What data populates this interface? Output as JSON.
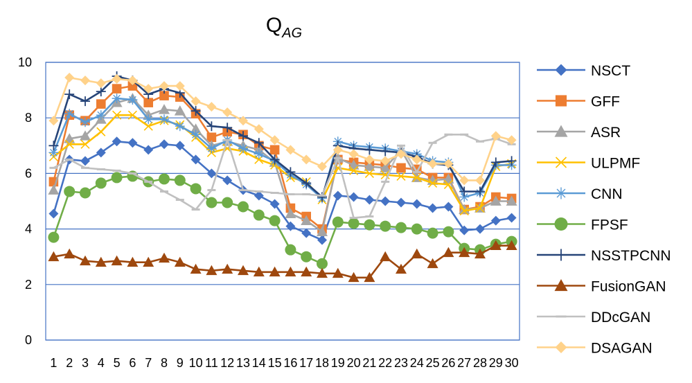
{
  "chart_data": {
    "type": "line",
    "title": "Q",
    "title_subscript": "AG",
    "xlabel": "",
    "ylabel": "",
    "ylim": [
      0,
      10
    ],
    "yticks": [
      0,
      2,
      4,
      6,
      8,
      10
    ],
    "grid": "horizontal",
    "legend_position": "right",
    "categories": [
      "1",
      "2",
      "3",
      "4",
      "5",
      "6",
      "7",
      "8",
      "9",
      "10",
      "11",
      "12",
      "13",
      "14",
      "15",
      "16",
      "17",
      "18",
      "19",
      "20",
      "21",
      "22",
      "23",
      "24",
      "25",
      "26",
      "27",
      "28",
      "29",
      "30"
    ],
    "series": [
      {
        "name": "NSCT",
        "color": "#4472C4",
        "marker": "diamond",
        "values": [
          4.55,
          6.5,
          6.45,
          6.75,
          7.15,
          7.1,
          6.85,
          7.05,
          7.0,
          6.5,
          6.0,
          5.75,
          5.4,
          5.2,
          4.9,
          4.1,
          3.85,
          3.6,
          5.2,
          5.15,
          5.05,
          5.0,
          4.95,
          4.9,
          4.75,
          4.8,
          3.95,
          4.0,
          4.3,
          4.4
        ]
      },
      {
        "name": "GFF",
        "color": "#ED7D31",
        "marker": "square",
        "values": [
          5.7,
          8.1,
          7.9,
          8.5,
          9.05,
          9.15,
          8.55,
          8.8,
          8.75,
          8.15,
          7.3,
          7.5,
          7.4,
          7.0,
          6.85,
          4.75,
          4.45,
          4.0,
          6.5,
          6.4,
          6.35,
          6.3,
          6.2,
          6.15,
          5.85,
          5.85,
          4.7,
          4.8,
          5.15,
          5.1
        ]
      },
      {
        "name": "ASR",
        "color": "#A5A5A5",
        "marker": "triangle",
        "values": [
          5.4,
          7.25,
          7.35,
          7.95,
          8.55,
          8.7,
          8.1,
          8.3,
          8.25,
          7.6,
          7.0,
          7.15,
          7.0,
          6.85,
          6.4,
          4.55,
          4.3,
          3.9,
          6.55,
          6.3,
          6.25,
          6.2,
          6.85,
          5.85,
          5.75,
          5.8,
          4.7,
          4.75,
          5.0,
          5.0
        ]
      },
      {
        "name": "ULPMF",
        "color": "#FFC000",
        "marker": "x",
        "values": [
          6.6,
          7.05,
          7.05,
          7.5,
          8.1,
          8.1,
          7.7,
          7.9,
          7.75,
          7.3,
          6.75,
          6.9,
          6.8,
          6.5,
          6.3,
          5.85,
          5.7,
          5.05,
          6.2,
          6.1,
          6.0,
          5.95,
          5.9,
          5.85,
          5.65,
          5.6,
          4.65,
          4.75,
          6.25,
          6.35
        ]
      },
      {
        "name": "CNN",
        "color": "#5B9BD5",
        "marker": "star",
        "values": [
          6.75,
          8.15,
          7.85,
          8.1,
          8.7,
          8.65,
          7.95,
          7.95,
          7.7,
          7.4,
          6.9,
          7.2,
          6.9,
          6.7,
          6.45,
          5.95,
          5.6,
          5.1,
          7.15,
          7.0,
          6.95,
          6.9,
          6.8,
          6.7,
          6.45,
          6.4,
          5.15,
          5.3,
          6.3,
          6.3
        ]
      },
      {
        "name": "FPSF",
        "color": "#70AD47",
        "marker": "circle",
        "values": [
          3.7,
          5.35,
          5.3,
          5.65,
          5.85,
          5.9,
          5.7,
          5.8,
          5.75,
          5.45,
          4.95,
          4.95,
          4.8,
          4.5,
          4.3,
          3.25,
          3.0,
          2.75,
          4.25,
          4.2,
          4.15,
          4.1,
          4.05,
          4.0,
          3.85,
          3.9,
          3.3,
          3.25,
          3.45,
          3.55
        ]
      },
      {
        "name": "NSSTPCNN",
        "color": "#264478",
        "marker": "plus",
        "values": [
          7.0,
          8.85,
          8.6,
          8.95,
          9.5,
          9.35,
          8.85,
          9.05,
          8.9,
          8.25,
          7.7,
          7.65,
          7.35,
          7.1,
          6.5,
          6.05,
          5.65,
          5.15,
          7.0,
          6.9,
          6.85,
          6.8,
          6.75,
          6.6,
          6.35,
          6.3,
          5.35,
          5.35,
          6.4,
          6.45
        ]
      },
      {
        "name": "FusionGAN",
        "color": "#9E480E",
        "marker": "triangle",
        "values": [
          3.0,
          3.1,
          2.85,
          2.8,
          2.85,
          2.8,
          2.8,
          2.95,
          2.8,
          2.55,
          2.5,
          2.55,
          2.5,
          2.45,
          2.45,
          2.45,
          2.45,
          2.4,
          2.4,
          2.25,
          2.25,
          3.0,
          2.55,
          3.1,
          2.75,
          3.15,
          3.15,
          3.1,
          3.4,
          3.4
        ]
      },
      {
        "name": "DDcGAN",
        "color": "#C0C0C0",
        "marker": "dash",
        "values": [
          6.2,
          6.5,
          6.2,
          6.15,
          6.1,
          6.0,
          5.7,
          5.35,
          5.05,
          4.7,
          5.4,
          7.2,
          5.4,
          5.35,
          5.3,
          5.25,
          5.25,
          5.2,
          6.55,
          4.4,
          4.45,
          5.7,
          7.0,
          6.05,
          7.1,
          7.4,
          7.4,
          7.15,
          7.25,
          7.05
        ]
      },
      {
        "name": "DSAGAN",
        "color": "#FFD28A",
        "marker": "diamond",
        "values": [
          7.9,
          9.45,
          9.35,
          9.25,
          9.4,
          9.35,
          9.05,
          9.15,
          9.15,
          8.6,
          8.4,
          8.2,
          7.9,
          7.6,
          7.2,
          6.85,
          6.5,
          6.25,
          6.85,
          6.7,
          6.5,
          6.45,
          6.7,
          6.5,
          6.35,
          6.35,
          5.75,
          5.75,
          7.35,
          7.2
        ]
      }
    ]
  }
}
